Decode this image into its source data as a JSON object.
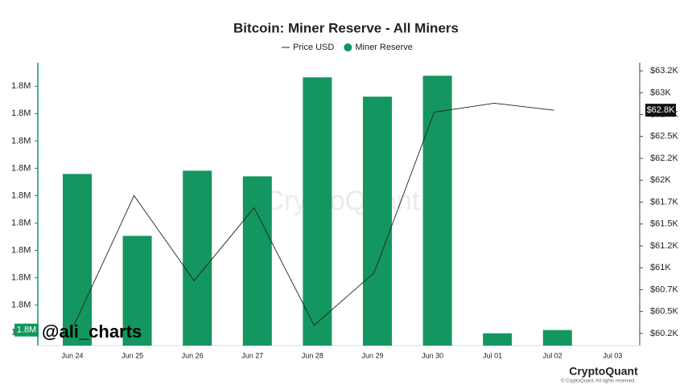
{
  "chart_data": {
    "type": "bar",
    "title": "Bitcoin: Miner Reserve - All Miners",
    "watermark": "CryptoQuant",
    "overlay_text": "@ali_charts",
    "brand": "CryptoQuant",
    "copyright": "© CryptoQuant. All rights reserved.",
    "categories": [
      "Jun 24",
      "Jun 25",
      "Jun 26",
      "Jun 27",
      "Jun 28",
      "Jun 29",
      "Jun 30",
      "Jul 01",
      "Jul 02",
      "Jul 03"
    ],
    "series": [
      {
        "name": "Price USD",
        "type": "line",
        "axis": "y2",
        "color": "#222222",
        "values": [
          60343,
          61824,
          60852,
          61685,
          60343,
          60944,
          62778,
          62880,
          62800,
          null
        ],
        "value_labels": [
          null,
          null,
          null,
          null,
          null,
          null,
          null,
          null,
          "$62.8K",
          null
        ]
      },
      {
        "name": "Miner Reserve",
        "type": "bar",
        "color": "#13965f",
        "values": [
          1798897,
          1797765,
          1798956,
          1798853,
          1800662,
          1800309,
          1800691,
          1795985,
          1796044,
          null
        ],
        "value_labels": [
          null,
          null,
          null,
          null,
          null,
          null,
          null,
          null,
          "1.8M",
          null
        ]
      }
    ],
    "ylim": [
      1795760,
      1800930
    ],
    "yticks": [
      {
        "value": 1796000,
        "label": "1.8M"
      },
      {
        "value": 1796500,
        "label": "1.8M"
      },
      {
        "value": 1797000,
        "label": "1.8M"
      },
      {
        "value": 1797500,
        "label": "1.8M"
      },
      {
        "value": 1798000,
        "label": "1.8M"
      },
      {
        "value": 1798500,
        "label": "1.8M"
      },
      {
        "value": 1799000,
        "label": "1.8M"
      },
      {
        "value": 1799500,
        "label": "1.8M"
      },
      {
        "value": 1800000,
        "label": "1.8M"
      },
      {
        "value": 1800500,
        "label": "1.8M"
      }
    ],
    "y2lim": [
      60111,
      63343
    ],
    "y2ticks": [
      {
        "value": 60250,
        "label": "$60.2K"
      },
      {
        "value": 60500,
        "label": "$60.5K"
      },
      {
        "value": 60750,
        "label": "$60.7K"
      },
      {
        "value": 61000,
        "label": "$61K"
      },
      {
        "value": 61250,
        "label": "$61.2K"
      },
      {
        "value": 61500,
        "label": "$61.5K"
      },
      {
        "value": 61750,
        "label": "$61.7K"
      },
      {
        "value": 62000,
        "label": "$62K"
      },
      {
        "value": 62250,
        "label": "$62.2K"
      },
      {
        "value": 62500,
        "label": "$62.5K"
      },
      {
        "value": 62750,
        "label": "$62.7K"
      },
      {
        "value": 63000,
        "label": "$63K"
      },
      {
        "value": 63250,
        "label": "$63.2K"
      }
    ],
    "grid": false
  }
}
